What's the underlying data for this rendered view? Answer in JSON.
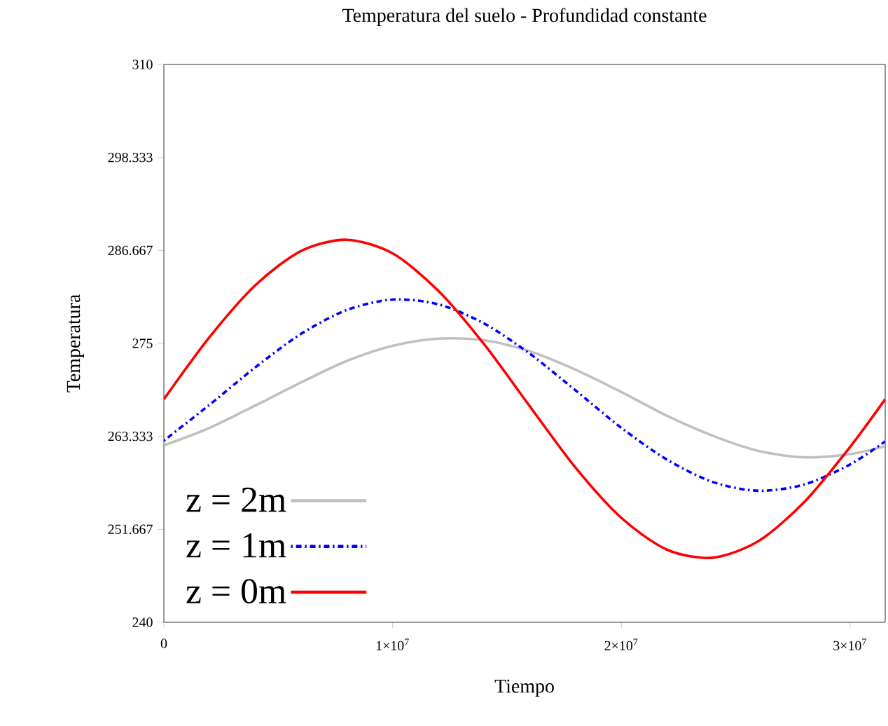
{
  "chart_data": {
    "type": "line",
    "title": "Temperatura del suelo - Profundidad constante",
    "xlabel": "Tiempo",
    "ylabel": "Temperatura",
    "x": [
      0,
      2000000,
      4000000,
      6000000,
      8000000,
      10000000,
      12000000,
      14000000,
      16000000,
      18000000,
      20000000,
      22000000,
      24000000,
      26000000,
      28000000,
      30000000,
      31536000
    ],
    "series": [
      {
        "name": "z = 2m",
        "color": "#c0c0c0",
        "line_style": "solid",
        "values": [
          262.2,
          264.4,
          267.2,
          270.1,
          272.8,
          274.7,
          275.6,
          275.4,
          274.0,
          271.7,
          268.9,
          265.9,
          263.4,
          261.5,
          260.7,
          261.1,
          262.1
        ]
      },
      {
        "name": "z = 1m",
        "color": "#0000ff",
        "line_style": "dotted",
        "values": [
          262.8,
          267.3,
          272.0,
          276.2,
          279.2,
          280.5,
          279.9,
          277.5,
          273.7,
          269.1,
          264.4,
          260.4,
          257.6,
          256.5,
          257.3,
          259.8,
          262.7
        ]
      },
      {
        "name": "z = 0m",
        "color": "#ff0000",
        "line_style": "solid",
        "values": [
          268.0,
          275.8,
          282.3,
          286.6,
          288.0,
          286.3,
          281.6,
          274.9,
          267.1,
          259.4,
          253.1,
          249.1,
          248.1,
          250.2,
          255.1,
          262.0,
          268.0
        ]
      }
    ],
    "xlim": [
      0,
      31536000
    ],
    "ylim": [
      240,
      310
    ],
    "xticks": [
      0,
      {
        "value": 10000000,
        "label": "1×10$^{7}$"
      },
      {
        "value": 20000000,
        "label": "2×10$^{7}$"
      },
      {
        "value": 30000000,
        "label": "3×10$^{7}$"
      }
    ],
    "yticks": [
      240,
      251.667,
      263.333,
      275,
      286.667,
      298.333,
      310
    ],
    "legend": "bottom left"
  }
}
